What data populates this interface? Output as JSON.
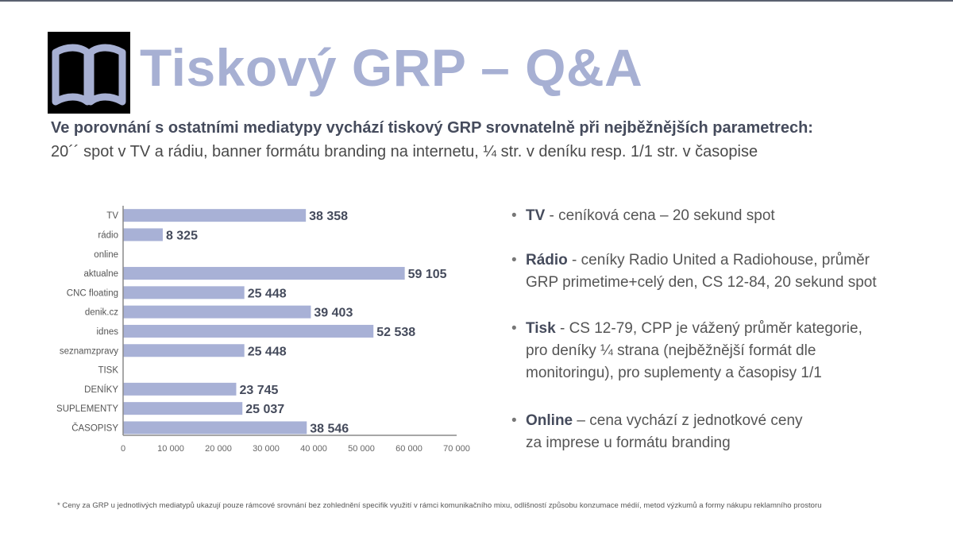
{
  "title": "Tiskový GRP – Q&A",
  "subtitle": "Ve porovnání s ostatními mediatypy vychází tiskový GRP srovnatelně při nejběžnějších parametrech:",
  "subtext": "20´´ spot v TV a rádiu, banner formátu branding na internetu, ¼ str. v deníku resp. 1/1 str. v časopise",
  "logo_icon": "open-book-icon",
  "colors": {
    "bar": "#a8b1d6",
    "title": "#a7b0d3",
    "value_label": "#454b5c"
  },
  "chart_data": {
    "type": "bar",
    "orientation": "horizontal",
    "categories": [
      "TV",
      "rádio",
      "online",
      "aktualne",
      "CNC floating",
      "denik.cz",
      "idnes",
      "seznamzpravy",
      "TISK",
      "DENÍKY",
      "SUPLEMENTY",
      "ČASOPISY"
    ],
    "values": [
      38358,
      8325,
      null,
      59105,
      25448,
      39403,
      52538,
      25448,
      null,
      23745,
      25037,
      38546
    ],
    "value_labels": [
      "38 358",
      "8 325",
      "",
      "59 105",
      "25 448",
      "39 403",
      "52 538",
      "25 448",
      "",
      "23 745",
      "25 037",
      "38 546"
    ],
    "xlim": [
      0,
      70000
    ],
    "xticks": [
      0,
      10000,
      20000,
      30000,
      40000,
      50000,
      60000,
      70000
    ],
    "xtick_labels": [
      "0",
      "10 000",
      "20 000",
      "30 000",
      "40 000",
      "50 000",
      "60 000",
      "70 000"
    ],
    "title": "",
    "xlabel": "",
    "ylabel": "",
    "grid": false
  },
  "bullets": [
    {
      "head": "TV",
      "lines": [
        " - ceníková cena – 20 sekund spot"
      ]
    },
    {
      "head": "Rádio",
      "lines": [
        " - ceníky Radio United a Radiohouse, průměr",
        "GRP primetime+celý den, CS 12-84, 20 sekund spot"
      ]
    },
    {
      "head": "Tisk",
      "lines": [
        " - CS 12-79, CPP je vážený průměr kategorie,",
        "pro deníky ¼ strana (nejběžnější formát dle",
        "monitoringu), pro suplementy a časopisy 1/1"
      ]
    },
    {
      "head": "Online",
      "lines": [
        " – cena vychází z jednotkové ceny",
        "za imprese u formátu branding"
      ]
    }
  ],
  "footnote": "* Ceny za GRP u jednotlivých mediatypů ukazují pouze rámcové srovnání bez zohlednění specifik využití v rámci komunikačního mixu, odlišností způsobu konzumace médií, metod výzkumů a formy nákupu reklamního prostoru"
}
